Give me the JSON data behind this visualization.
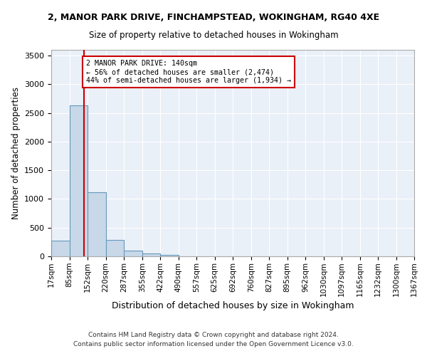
{
  "title_line1": "2, MANOR PARK DRIVE, FINCHAMPSTEAD, WOKINGHAM, RG40 4XE",
  "title_line2": "Size of property relative to detached houses in Wokingham",
  "xlabel": "Distribution of detached houses by size in Wokingham",
  "ylabel": "Number of detached properties",
  "bin_edges": [
    17,
    85,
    152,
    220,
    287,
    355,
    422,
    490,
    557,
    625,
    692,
    760,
    827,
    895,
    962,
    1030,
    1097,
    1165,
    1232,
    1300,
    1367
  ],
  "bin_labels": [
    "17sqm",
    "85sqm",
    "152sqm",
    "220sqm",
    "287sqm",
    "355sqm",
    "422sqm",
    "490sqm",
    "557sqm",
    "625sqm",
    "692sqm",
    "760sqm",
    "827sqm",
    "895sqm",
    "962sqm",
    "1030sqm",
    "1097sqm",
    "1165sqm",
    "1232sqm",
    "1300sqm",
    "1367sqm"
  ],
  "bar_heights": [
    270,
    2630,
    1120,
    280,
    100,
    50,
    30,
    0,
    0,
    0,
    0,
    0,
    0,
    0,
    0,
    0,
    0,
    0,
    0,
    0
  ],
  "bar_color": "#c8d8e8",
  "bar_edge_color": "#6699bb",
  "property_size": 140,
  "vline_color": "#cc0000",
  "ylim": [
    0,
    3600
  ],
  "yticks": [
    0,
    500,
    1000,
    1500,
    2000,
    2500,
    3000,
    3500
  ],
  "annotation_text": "2 MANOR PARK DRIVE: 140sqm\n← 56% of detached houses are smaller (2,474)\n44% of semi-detached houses are larger (1,934) →",
  "annotation_box_color": "#ffffff",
  "annotation_box_edge_color": "#cc0000",
  "footer_line1": "Contains HM Land Registry data © Crown copyright and database right 2024.",
  "footer_line2": "Contains public sector information licensed under the Open Government Licence v3.0.",
  "plot_background": "#eaf0f8"
}
